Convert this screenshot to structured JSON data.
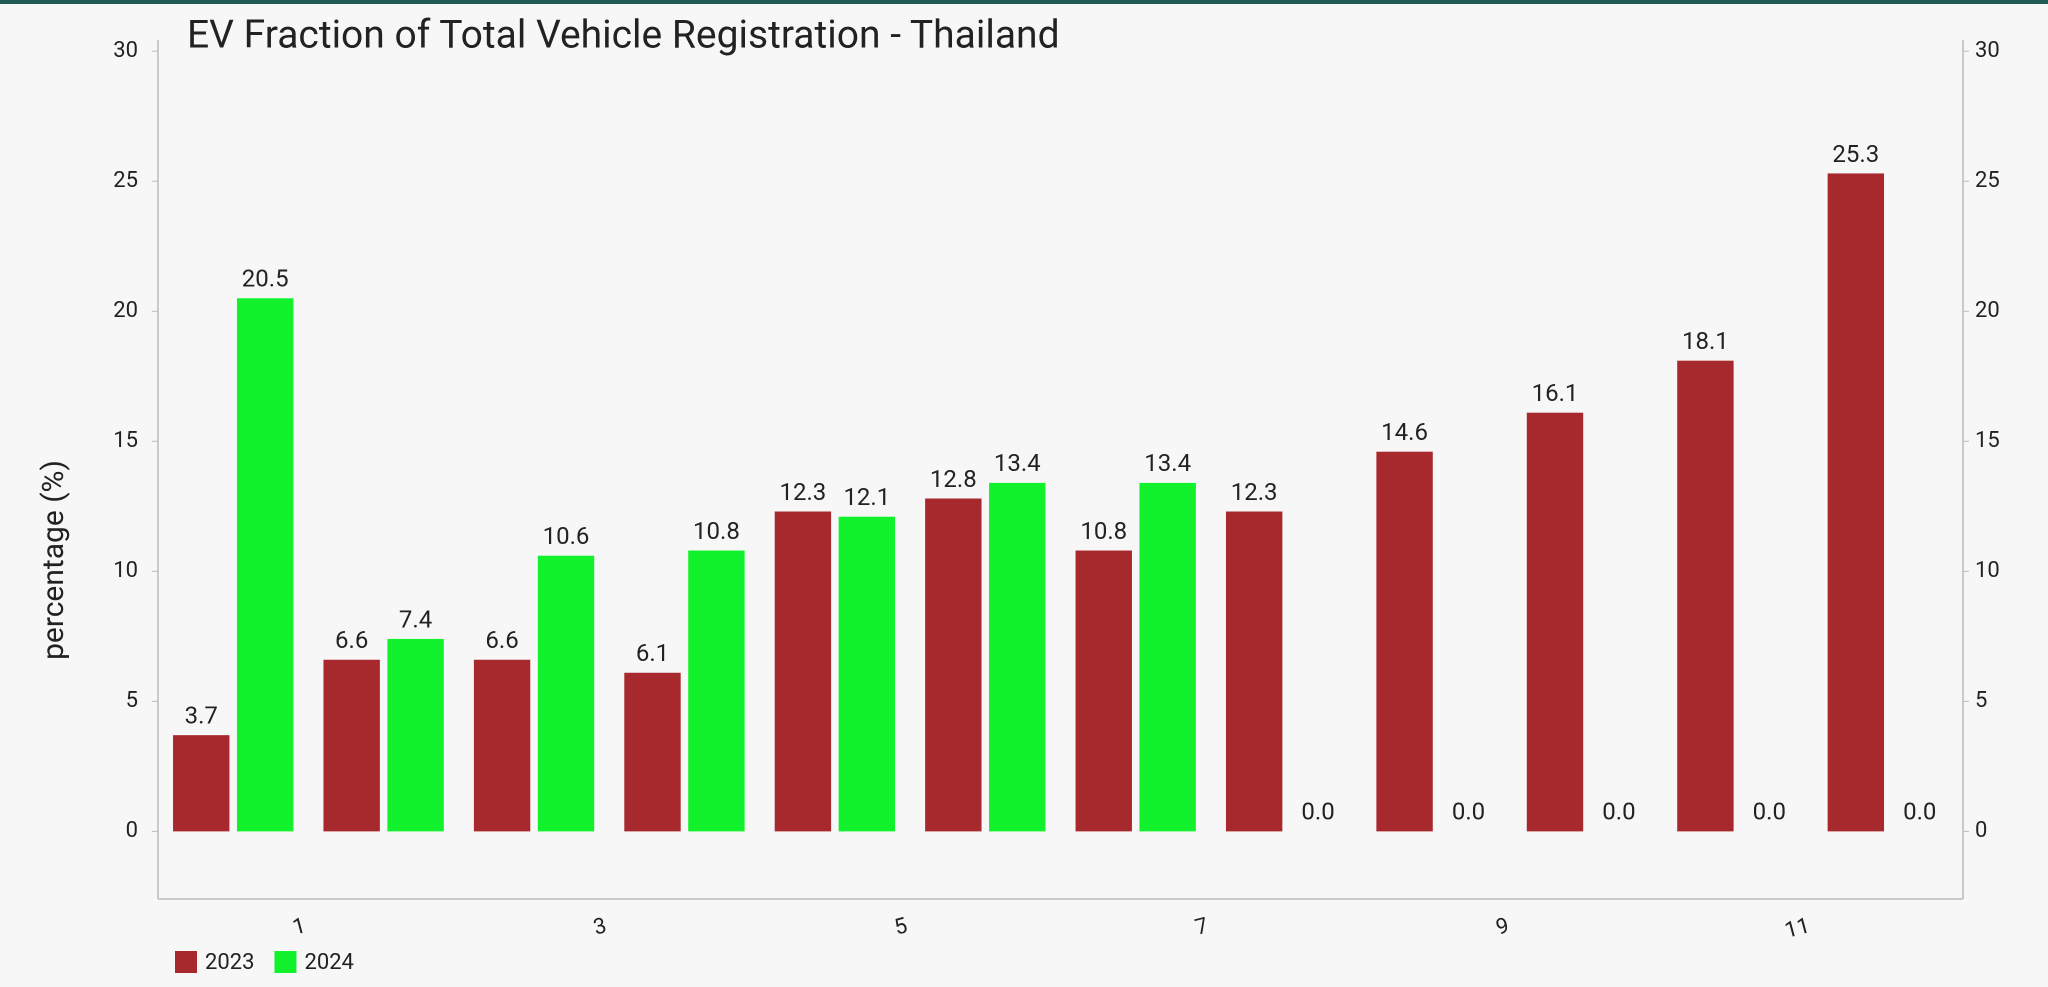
{
  "chart_data": {
    "type": "bar",
    "title": "EV Fraction of Total Vehicle Registration - Thailand",
    "y_label": "percentage (%)",
    "categories": [
      "1",
      null,
      "3",
      null,
      "5",
      null,
      "7",
      null,
      "9",
      null,
      "11",
      null
    ],
    "series": [
      {
        "name": "2023",
        "color": "#a8292d",
        "values": [
          3.7,
          6.6,
          6.6,
          6.1,
          12.3,
          12.8,
          10.8,
          12.3,
          14.6,
          16.1,
          18.1,
          25.3
        ],
        "value_labels": [
          "3.7",
          "6.6",
          "6.6",
          "6.1",
          "12.3",
          "12.8",
          "10.8",
          "12.3",
          "14.6",
          "16.1",
          "18.1",
          "25.3"
        ]
      },
      {
        "name": "2024",
        "color": "#11f22c",
        "values": [
          20.5,
          7.4,
          10.6,
          10.8,
          12.1,
          13.4,
          13.4,
          0,
          0,
          0,
          0,
          0
        ],
        "value_labels": [
          "20.5",
          "7.4",
          "10.6",
          "10.8",
          "12.1",
          "13.4",
          "13.4",
          "0.0",
          "0.0",
          "0.0",
          "0.0",
          "0.0"
        ]
      }
    ],
    "ylim": [
      -2.6,
      30.2
    ],
    "yticks": [
      0,
      5,
      10,
      15,
      20,
      25,
      30
    ],
    "legend": "bottom-left"
  }
}
